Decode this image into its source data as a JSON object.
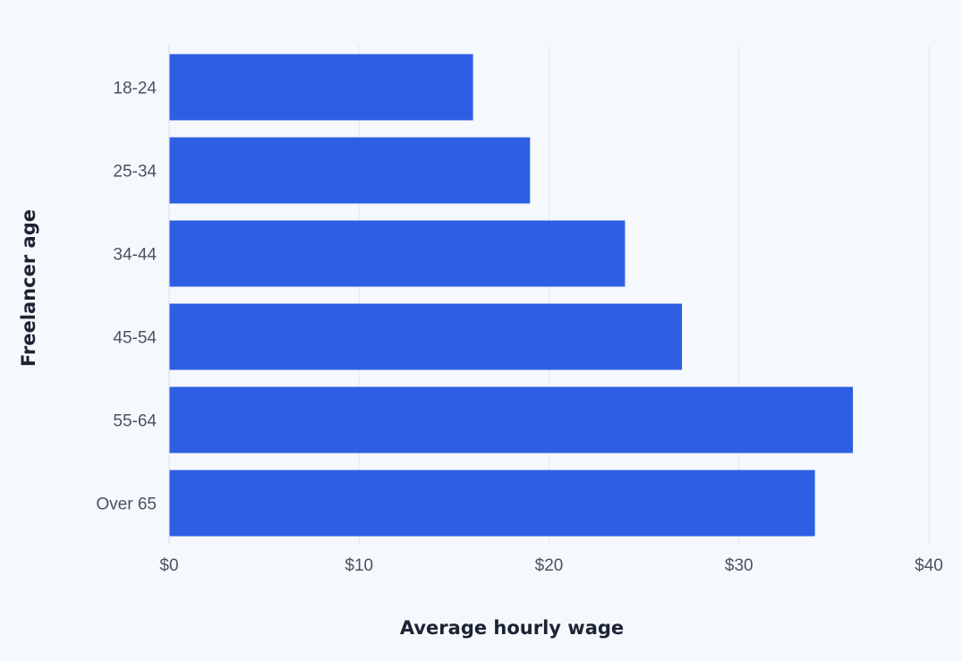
{
  "chart_data": {
    "type": "bar",
    "orientation": "horizontal",
    "categories": [
      "18-24",
      "25-34",
      "34-44",
      "45-54",
      "55-64",
      "Over 65"
    ],
    "values": [
      16,
      19,
      24,
      27,
      36,
      34
    ],
    "xlabel": "Average hourly wage",
    "ylabel": "Freelancer age",
    "xlim": [
      0,
      40
    ],
    "x_ticks": [
      0,
      10,
      20,
      30,
      40
    ],
    "x_tick_labels": [
      "$0",
      "$10",
      "$20",
      "$30",
      "$40"
    ],
    "grid": "vertical",
    "legend": "none",
    "bar_color": "#2d5ee3",
    "background_color": "#f5f9fd",
    "grid_color": "#e3e8ee"
  }
}
